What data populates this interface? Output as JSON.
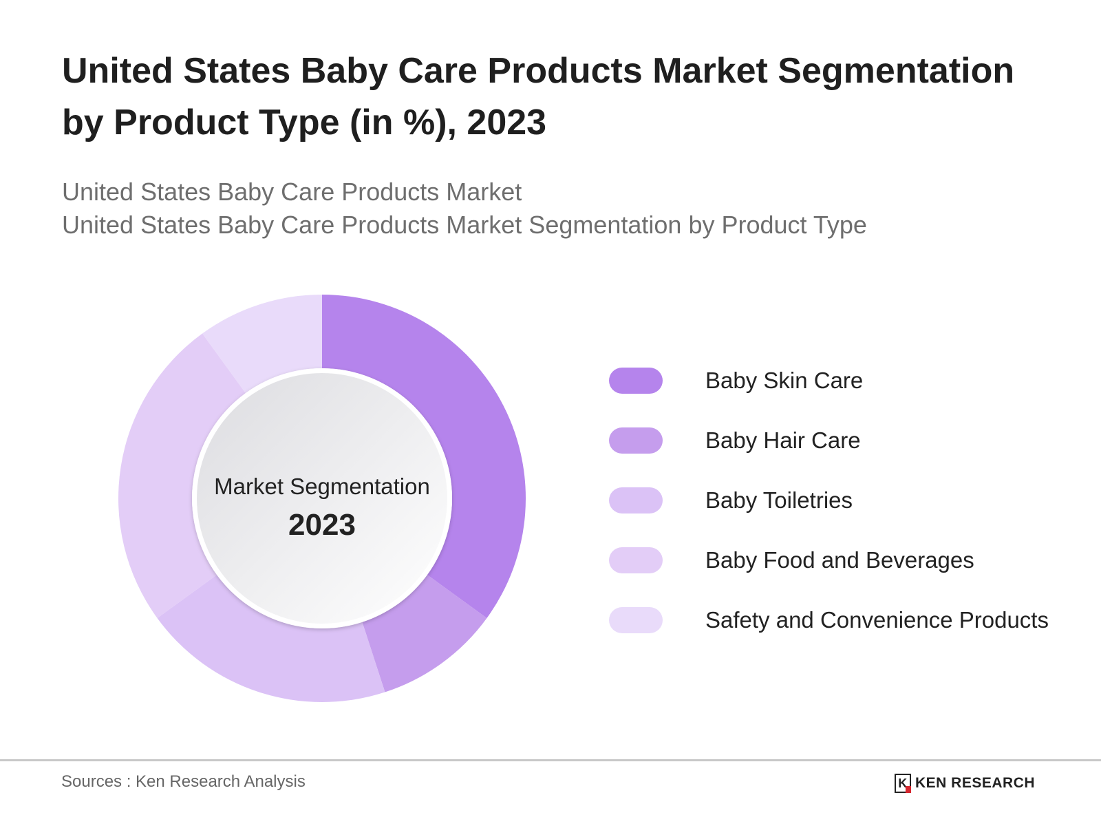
{
  "title": "United States Baby Care Products Market Segmentation by Product Type (in %), 2023",
  "subtitle_1": "United States Baby Care Products Market",
  "subtitle_2": "United States Baby Care Products Market Segmentation by Product Type",
  "chart_data": {
    "type": "pie",
    "variant": "donut",
    "center_label": "Market Segmentation",
    "center_year": "2023",
    "legend_position": "right",
    "categories": [
      "Baby Skin Care",
      "Baby Hair Care",
      "Baby Toiletries",
      "Baby Food and Beverages",
      "Safety and Convenience Products"
    ],
    "values": [
      35,
      10,
      20,
      25,
      10
    ],
    "colors": [
      "#b584ec",
      "#c59ded",
      "#dbc2f6",
      "#e3cdf7",
      "#e9dbfa"
    ]
  },
  "footer": {
    "source": "Sources : Ken Research Analysis",
    "logo_text": "KEN RESEARCH",
    "logo_mark": "K"
  }
}
